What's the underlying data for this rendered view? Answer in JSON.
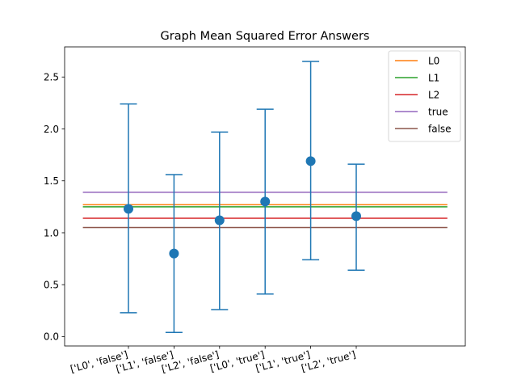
{
  "chart_data": {
    "type": "scatter",
    "title": "Graph Mean Squared Error Answers",
    "xlabel": "",
    "ylabel": "",
    "ylim": [
      -0.09,
      2.79
    ],
    "categories": [
      "['L0', 'false']",
      "['L1', 'false']",
      "['L2', 'false']",
      "['L0', 'true']",
      "['L1', 'true']",
      "['L2', 'true']"
    ],
    "points": [
      {
        "category": "['L0', 'false']",
        "mean": 1.23,
        "lower": 0.23,
        "upper": 2.24
      },
      {
        "category": "['L1', 'false']",
        "mean": 0.8,
        "lower": 0.04,
        "upper": 1.56
      },
      {
        "category": "['L2', 'false']",
        "mean": 1.12,
        "lower": 0.26,
        "upper": 1.97
      },
      {
        "category": "['L0', 'true']",
        "mean": 1.3,
        "lower": 0.41,
        "upper": 2.19
      },
      {
        "category": "['L1', 'true']",
        "mean": 1.69,
        "lower": 0.74,
        "upper": 2.65
      },
      {
        "category": "['L2', 'true']",
        "mean": 1.16,
        "lower": 0.64,
        "upper": 1.66
      }
    ],
    "point_color": "#1f77b4",
    "yticks": [
      0.0,
      0.5,
      1.0,
      1.5,
      2.0,
      2.5
    ],
    "ytick_labels": [
      "0.0",
      "0.5",
      "1.0",
      "1.5",
      "2.0",
      "2.5"
    ],
    "reference_lines": [
      {
        "name": "L0",
        "value": 1.27,
        "color": "#ff7f0e"
      },
      {
        "name": "L1",
        "value": 1.25,
        "color": "#2ca02c"
      },
      {
        "name": "L2",
        "value": 1.14,
        "color": "#d62728"
      },
      {
        "name": "true",
        "value": 1.39,
        "color": "#9467bd"
      },
      {
        "name": "false",
        "value": 1.05,
        "color": "#8c564b"
      }
    ],
    "legend_position": "top-right",
    "grid": false
  }
}
